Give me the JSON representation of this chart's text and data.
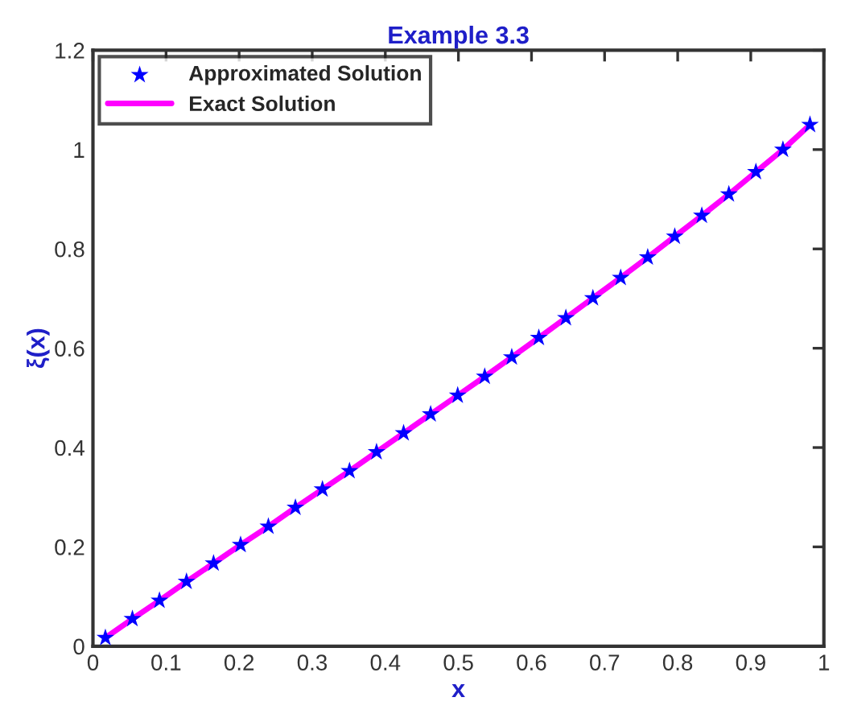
{
  "chart_data": {
    "type": "line",
    "title": "Example 3.3",
    "xlabel": "x",
    "ylabel": "ξ(x)",
    "x": [
      0.017,
      0.054,
      0.091,
      0.128,
      0.165,
      0.202,
      0.24,
      0.277,
      0.314,
      0.351,
      0.388,
      0.425,
      0.462,
      0.499,
      0.536,
      0.573,
      0.61,
      0.647,
      0.684,
      0.722,
      0.759,
      0.796,
      0.833,
      0.87,
      0.907,
      0.944,
      0.981
    ],
    "series": [
      {
        "name": "Approximated Solution",
        "type": "scatter",
        "color": "#0000ff",
        "marker": "star",
        "values": [
          0.017,
          0.055,
          0.092,
          0.13,
          0.167,
          0.204,
          0.241,
          0.279,
          0.316,
          0.353,
          0.391,
          0.429,
          0.467,
          0.505,
          0.543,
          0.582,
          0.621,
          0.661,
          0.701,
          0.742,
          0.783,
          0.825,
          0.867,
          0.91,
          0.955,
          1.0,
          1.05
        ]
      },
      {
        "name": "Exact Solution",
        "color": "#ff00ff",
        "marker": "none",
        "values": [
          0.017,
          0.055,
          0.092,
          0.13,
          0.167,
          0.204,
          0.241,
          0.279,
          0.316,
          0.353,
          0.391,
          0.429,
          0.467,
          0.505,
          0.543,
          0.582,
          0.621,
          0.661,
          0.701,
          0.742,
          0.783,
          0.825,
          0.867,
          0.91,
          0.955,
          1.0,
          1.05
        ]
      }
    ],
    "xlim": [
      0,
      1
    ],
    "xticks": [
      0,
      0.1,
      0.2,
      0.3,
      0.4,
      0.5,
      0.6,
      0.7,
      0.8,
      0.9,
      1
    ],
    "ylim": [
      0,
      1.2
    ],
    "yticks": [
      0,
      0.2,
      0.4,
      0.6,
      0.8,
      1,
      1.2
    ],
    "legend": "top left",
    "grid": false
  }
}
